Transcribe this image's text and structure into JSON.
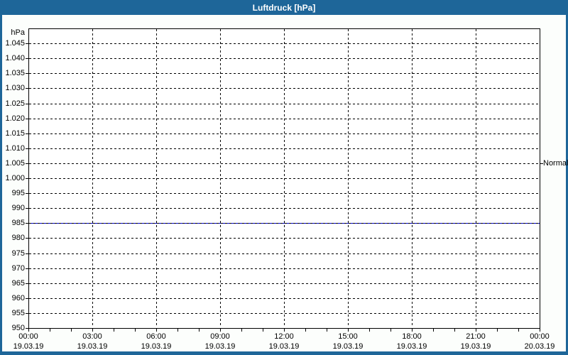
{
  "window": {
    "title": "Luftdruck [hPa]"
  },
  "colors": {
    "frame_blue": "#1e6699",
    "title_text": "#ffffff",
    "content_bg": "#fcfefc",
    "plot_bg": "#ffffff",
    "grid": "#000000",
    "series_line": "#0000cc"
  },
  "chart_data": {
    "type": "line",
    "title": "Luftdruck [hPa]",
    "y_unit_label": "hPa",
    "ylim": [
      950,
      1050
    ],
    "grid": "dashed",
    "y_ticks": [
      {
        "label": "1.045",
        "value": 1045
      },
      {
        "label": "1.040",
        "value": 1040
      },
      {
        "label": "1.035",
        "value": 1035
      },
      {
        "label": "1.030",
        "value": 1030
      },
      {
        "label": "1.025",
        "value": 1025
      },
      {
        "label": "1.020",
        "value": 1020
      },
      {
        "label": "1.015",
        "value": 1015
      },
      {
        "label": "1.010",
        "value": 1010
      },
      {
        "label": "1.005",
        "value": 1005
      },
      {
        "label": "1.000",
        "value": 1000
      },
      {
        "label": "995",
        "value": 995
      },
      {
        "label": "990",
        "value": 990
      },
      {
        "label": "985",
        "value": 985
      },
      {
        "label": "980",
        "value": 980
      },
      {
        "label": "975",
        "value": 975
      },
      {
        "label": "970",
        "value": 970
      },
      {
        "label": "965",
        "value": 965
      },
      {
        "label": "960",
        "value": 960
      },
      {
        "label": "955",
        "value": 955
      },
      {
        "label": "950",
        "value": 950
      }
    ],
    "xlim_hours": [
      0,
      24
    ],
    "x_minor_tick_step_hours": 1,
    "x_gridline_hours": [
      3,
      6,
      9,
      12,
      15,
      18,
      21
    ],
    "x_ticks": [
      {
        "hour": 0,
        "time": "00:00",
        "date": "19.03.19"
      },
      {
        "hour": 3,
        "time": "03:00",
        "date": "19.03.19"
      },
      {
        "hour": 6,
        "time": "06:00",
        "date": "19.03.19"
      },
      {
        "hour": 9,
        "time": "09:00",
        "date": "19.03.19"
      },
      {
        "hour": 12,
        "time": "12:00",
        "date": "19.03.19"
      },
      {
        "hour": 15,
        "time": "15:00",
        "date": "19.03.19"
      },
      {
        "hour": 18,
        "time": "18:00",
        "date": "19.03.19"
      },
      {
        "hour": 21,
        "time": "21:00",
        "date": "19.03.19"
      },
      {
        "hour": 24,
        "time": "00:00",
        "date": "20.03.19"
      }
    ],
    "series": [
      {
        "name": "Luftdruck",
        "color": "#0000cc",
        "x_hours": [
          0,
          24
        ],
        "values_hpa": [
          985,
          985
        ]
      }
    ],
    "annotations": [
      {
        "label": "Normal",
        "value_hpa": 1005
      }
    ]
  }
}
